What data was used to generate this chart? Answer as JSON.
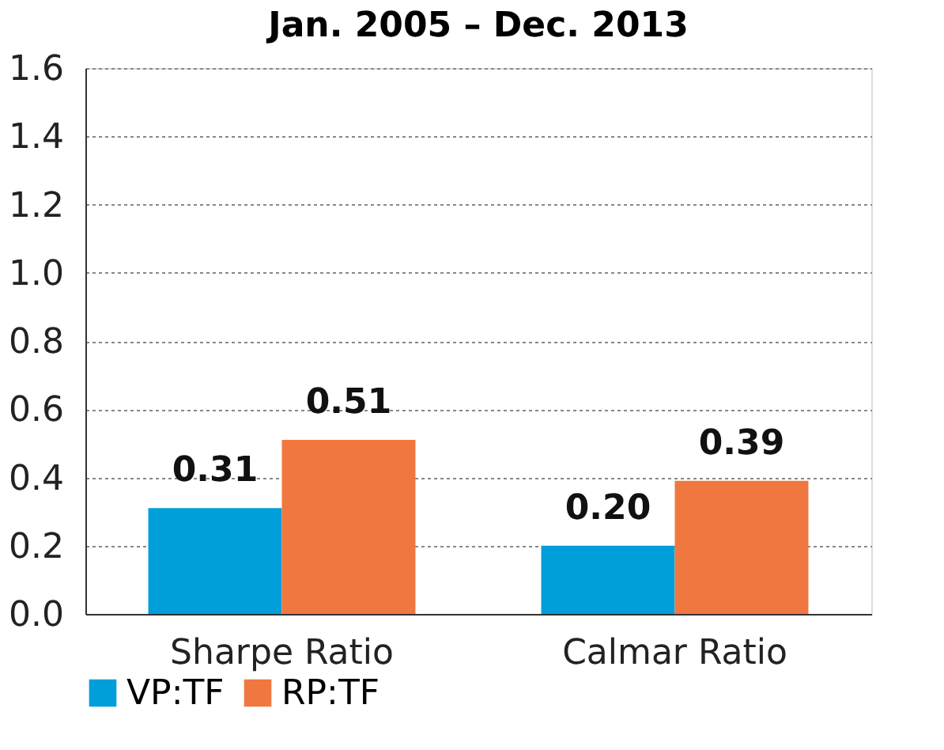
{
  "chart_data": {
    "type": "bar",
    "title": "Jan. 2005 – Dec. 2013",
    "categories": [
      "Sharpe Ratio",
      "Calmar Ratio"
    ],
    "series": [
      {
        "name": "VP:TF",
        "color": "#009fd9",
        "values": [
          0.31,
          0.2
        ],
        "value_labels": [
          "0.31",
          "0.20"
        ]
      },
      {
        "name": "RP:TF",
        "color": "#f07840",
        "values": [
          0.51,
          0.39
        ],
        "value_labels": [
          "0.51",
          "0.39"
        ]
      }
    ],
    "ylim": [
      0,
      1.6
    ],
    "yticks": [
      {
        "value": 0,
        "label": "0.0"
      },
      0.2,
      0.4,
      0.6,
      0.8,
      {
        "value": 1,
        "label": "1.0"
      },
      1.2,
      1.4,
      1.6
    ],
    "grid": "y",
    "legend": "bottom"
  }
}
